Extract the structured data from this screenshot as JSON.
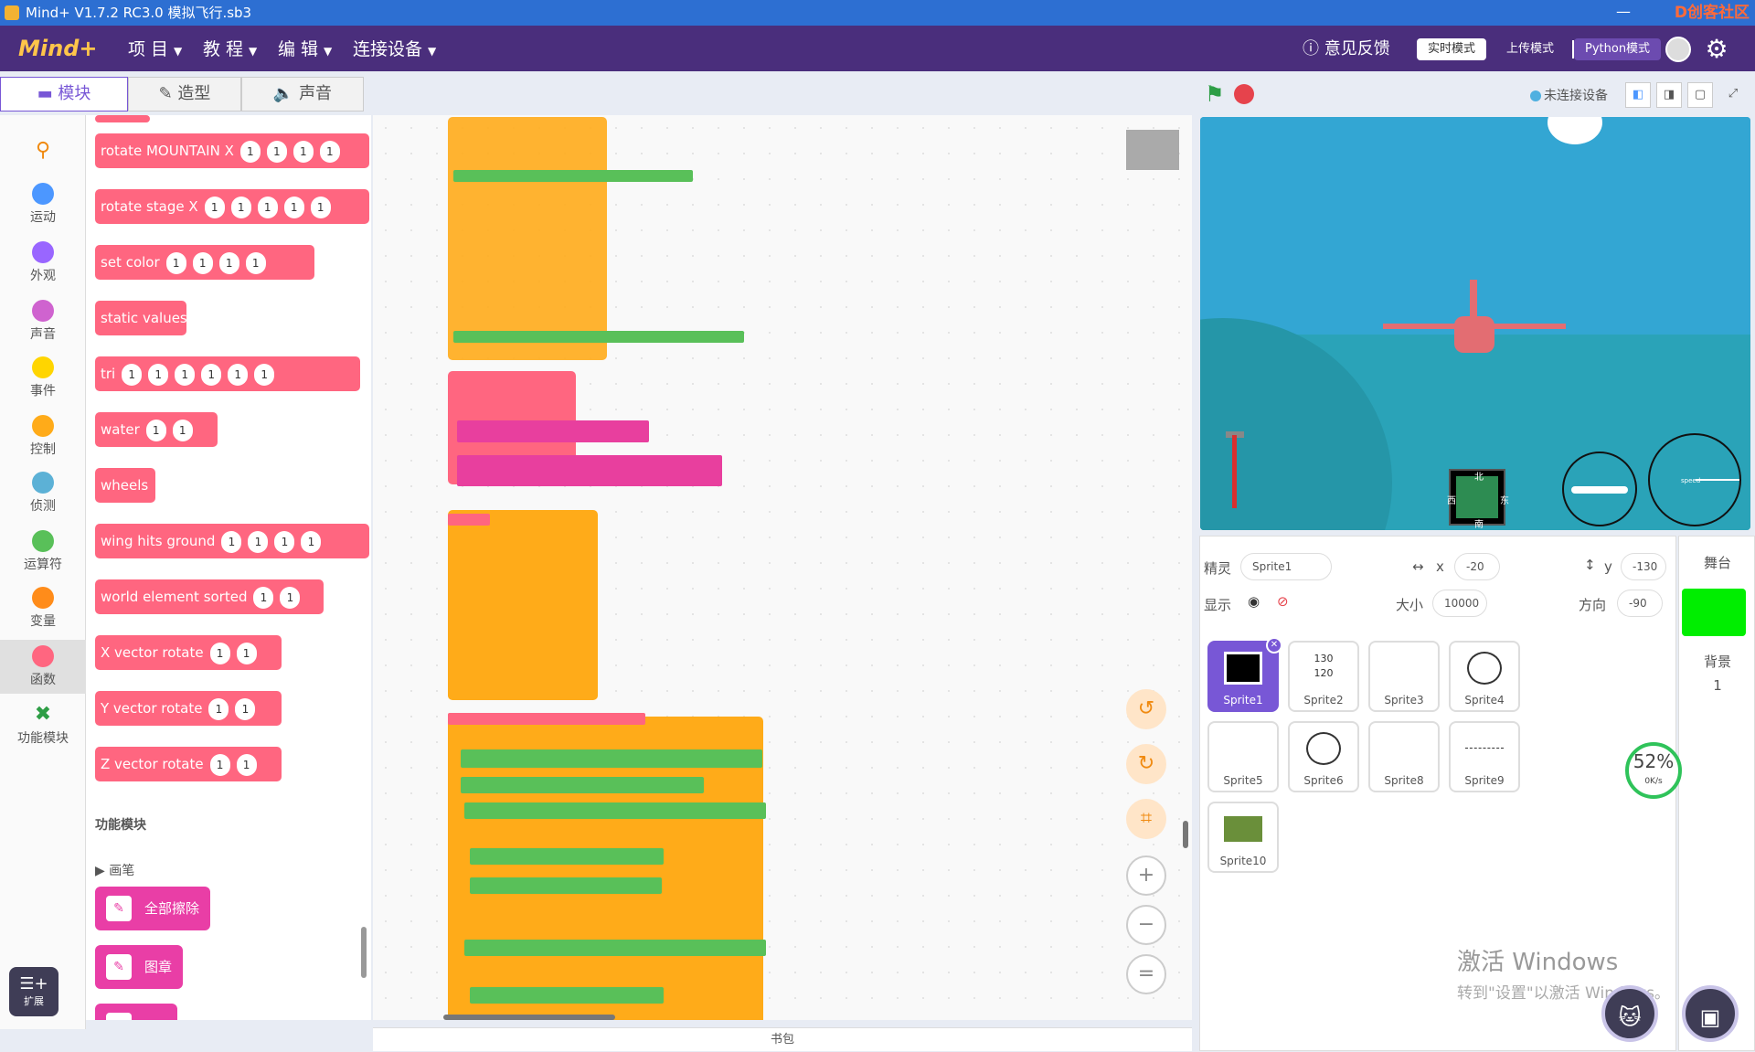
{
  "window": {
    "title": "Mind+ V1.7.2 RC3.0   模拟飞行.sb3",
    "minimize": "—",
    "brand": "D创客社区"
  },
  "menubar": {
    "logo": "Mind+",
    "items": [
      "项 目",
      "教 程",
      "编 辑",
      "连接设备"
    ],
    "feedback": "意见反馈",
    "modes": [
      "实时模式",
      "上传模式",
      "Python模式"
    ],
    "settings_icon": "gear-icon"
  },
  "tabs": [
    "模块",
    "造型",
    "声音"
  ],
  "categories": [
    {
      "label": "运动",
      "color": "#4c97ff"
    },
    {
      "label": "外观",
      "color": "#9966ff"
    },
    {
      "label": "声音",
      "color": "#cf63cf"
    },
    {
      "label": "事件",
      "color": "#ffd500"
    },
    {
      "label": "控制",
      "color": "#ffab19"
    },
    {
      "label": "侦测",
      "color": "#5cb1d6"
    },
    {
      "label": "运算符",
      "color": "#59c059"
    },
    {
      "label": "变量",
      "color": "#ff8c1a"
    },
    {
      "label": "函数",
      "color": "#ff6680"
    },
    {
      "label": "功能模块",
      "color": "#2e9e46"
    }
  ],
  "extension": {
    "label": "扩展"
  },
  "palette": {
    "blocks": [
      {
        "label": "rotate MOUNTAIN X",
        "args": [
          "1",
          "1",
          "1",
          "1"
        ]
      },
      {
        "label": "rotate stage X",
        "args": [
          "1",
          "1",
          "1",
          "1",
          "1"
        ]
      },
      {
        "label": "set color",
        "args": [
          "1",
          "1",
          "1",
          "1"
        ]
      },
      {
        "label": "static values",
        "args": []
      },
      {
        "label": "tri",
        "args": [
          "1",
          "1",
          "1",
          "1",
          "1",
          "1"
        ]
      },
      {
        "label": "water",
        "args": [
          "1",
          "1"
        ]
      },
      {
        "label": "wheels",
        "args": []
      },
      {
        "label": "wing hits ground",
        "args": [
          "1",
          "1",
          "1",
          "1"
        ]
      },
      {
        "label": "world element sorted",
        "args": [
          "1",
          "1"
        ]
      },
      {
        "label": "X vector rotate",
        "args": [
          "1",
          "1"
        ]
      },
      {
        "label": "Y vector rotate",
        "args": [
          "1",
          "1"
        ]
      },
      {
        "label": "Z vector rotate",
        "args": [
          "1",
          "1"
        ]
      }
    ],
    "section": "功能模块",
    "pen_group": "画笔",
    "pen_blocks": [
      "全部擦除",
      "图章"
    ]
  },
  "workspace": {
    "backpack": "书包",
    "zoom_in": "+",
    "zoom_out": "−",
    "reset": "="
  },
  "stage": {
    "connection": "未连接设备",
    "compass_n": "北",
    "compass_s": "南",
    "compass_w": "西",
    "compass_e": "东",
    "speed_label": "speed"
  },
  "sprite_info": {
    "sprite_label": "精灵",
    "sprite_name": "Sprite1",
    "x_label": "x",
    "x": "-20",
    "y_label": "y",
    "y": "-130",
    "show_label": "显示",
    "size_label": "大小",
    "size": "10000",
    "dir_label": "方向",
    "direction": "-90"
  },
  "sprites": [
    "Sprite1",
    "Sprite2",
    "Sprite3",
    "Sprite4",
    "Sprite5",
    "Sprite6",
    "Sprite8",
    "Sprite9",
    "Sprite10"
  ],
  "sprite2_values": [
    "130",
    "120"
  ],
  "stage_panel": {
    "title": "舞台",
    "bg_label": "背景",
    "bg_count": "1"
  },
  "perf": {
    "value": "52%",
    "rate": "0K/s"
  },
  "watermark": {
    "line1": "激活 Windows",
    "line2": "转到\"设置\"以激活 Windows。"
  }
}
